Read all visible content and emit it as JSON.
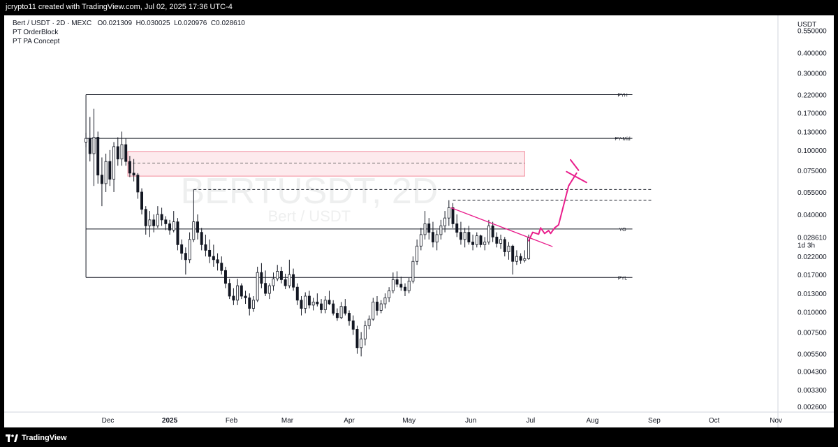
{
  "header": {
    "caption": "jcrypto11 created with TradingView.com, Jul 02, 2025 17:36 UTC-4"
  },
  "legend": {
    "symbol": "Bert / USDT · 2D · MEXC",
    "open": "O0.021309",
    "high": "H0.030025",
    "low": "L0.020976",
    "close": "C0.028610",
    "indicator_1": "PT OrderBlock",
    "indicator_2": "PT PA Concept"
  },
  "watermark": {
    "symbol": "BERTUSDT, 2D",
    "name": "Bert / USDT"
  },
  "price_scale": {
    "currency": "USDT",
    "last_price": "0.028610",
    "countdown": "1d 3h",
    "colors": {
      "last_price_badge": "#ffffff",
      "text": "#131722"
    }
  },
  "footer": {
    "brand": "TradingView"
  },
  "chart_data": {
    "type": "candlestick",
    "symbol": "BERTUSDT",
    "timeframe": "2D",
    "y_scale": "log",
    "ylim": [
      0.0024,
      0.68
    ],
    "yticks": [
      0.55,
      0.4,
      0.3,
      0.22,
      0.17,
      0.13,
      0.1,
      0.075,
      0.055,
      0.04,
      0.03,
      0.022,
      0.017,
      0.013,
      0.01,
      0.0075,
      0.0055,
      0.0043,
      0.0033,
      0.0026
    ],
    "ytick_labels": [
      "0.550000",
      "0.400000",
      "0.300000",
      "0.220000",
      "0.170000",
      "0.130000",
      "0.100000",
      "0.075000",
      "0.055000",
      "0.040000",
      "0.030000",
      "0.022000",
      "0.017000",
      "0.013000",
      "0.010000",
      "0.007500",
      "0.005500",
      "0.004300",
      "0.003300",
      "0.002600"
    ],
    "x_tick_labels": [
      {
        "label": "Dec",
        "date": "2024-12-01"
      },
      {
        "label": "2025",
        "date": "2025-01-01"
      },
      {
        "label": "Feb",
        "date": "2025-02-01"
      },
      {
        "label": "Mar",
        "date": "2025-03-01"
      },
      {
        "label": "Apr",
        "date": "2025-04-01"
      },
      {
        "label": "May",
        "date": "2025-05-01"
      },
      {
        "label": "Jun",
        "date": "2025-06-01"
      },
      {
        "label": "Jul",
        "date": "2025-07-01"
      },
      {
        "label": "Aug",
        "date": "2025-08-01"
      },
      {
        "label": "Sep",
        "date": "2025-09-01"
      },
      {
        "label": "Oct",
        "date": "2025-10-01"
      },
      {
        "label": "Nov",
        "date": "2025-11-01"
      }
    ],
    "x_range": [
      "2024-10-10",
      "2025-11-02"
    ],
    "levels": [
      {
        "label": "PYH",
        "value": 0.22,
        "from": "2024-11-20",
        "to": "2025-08-21"
      },
      {
        "label": "PY-Mid",
        "value": 0.118,
        "from": "2024-11-20",
        "to": "2025-08-21"
      },
      {
        "label": "YO",
        "value": 0.0325,
        "from": "2024-11-20",
        "to": "2025-08-21"
      },
      {
        "label": "PYL",
        "value": 0.0163,
        "from": "2024-11-20",
        "to": "2025-08-21"
      }
    ],
    "order_block": {
      "top": 0.098,
      "bottom": 0.069,
      "mid": 0.083,
      "from": "2024-12-11",
      "to": "2025-06-28",
      "color": "#f28b9c"
    },
    "dashed_levels": [
      {
        "value": 0.057,
        "from": "2025-01-13",
        "to": "2025-08-31"
      },
      {
        "value": 0.049,
        "from": "2025-05-23",
        "to": "2025-08-31"
      }
    ],
    "trendline": {
      "from": {
        "date": "2025-05-22",
        "value": 0.044
      },
      "to": {
        "date": "2025-07-12",
        "value": 0.0253
      },
      "color": "#e91e8c"
    },
    "projection": {
      "color": "#e91e8c",
      "points": [
        {
          "date": "2025-06-30",
          "value": 0.0275
        },
        {
          "date": "2025-07-02",
          "value": 0.031
        },
        {
          "date": "2025-07-05",
          "value": 0.0302
        },
        {
          "date": "2025-07-06",
          "value": 0.033
        },
        {
          "date": "2025-07-08",
          "value": 0.0305
        },
        {
          "date": "2025-07-10",
          "value": 0.0318
        },
        {
          "date": "2025-07-11",
          "value": 0.0305
        },
        {
          "date": "2025-07-13",
          "value": 0.033
        },
        {
          "date": "2025-07-15",
          "value": 0.0345
        },
        {
          "date": "2025-07-20",
          "value": 0.06
        },
        {
          "date": "2025-07-24",
          "value": 0.072
        }
      ]
    },
    "target_x": [
      {
        "from": {
          "date": "2025-07-19",
          "value": 0.0735
        },
        "to": {
          "date": "2025-07-29",
          "value": 0.063
        }
      },
      {
        "from": {
          "date": "2025-07-21",
          "value": 0.087
        },
        "to": {
          "date": "2025-07-25",
          "value": 0.075
        }
      }
    ],
    "candles": [
      {
        "d": "2024-11-20",
        "o": 0.112,
        "h": 0.128,
        "l": 0.104,
        "c": 0.118
      },
      {
        "d": "2024-11-22",
        "o": 0.118,
        "h": 0.16,
        "l": 0.085,
        "c": 0.095
      },
      {
        "d": "2024-11-24",
        "o": 0.095,
        "h": 0.18,
        "l": 0.06,
        "c": 0.12
      },
      {
        "d": "2024-11-26",
        "o": 0.12,
        "h": 0.13,
        "l": 0.062,
        "c": 0.07
      },
      {
        "d": "2024-11-28",
        "o": 0.07,
        "h": 0.09,
        "l": 0.045,
        "c": 0.062
      },
      {
        "d": "2024-11-30",
        "o": 0.062,
        "h": 0.095,
        "l": 0.055,
        "c": 0.085
      },
      {
        "d": "2024-12-02",
        "o": 0.085,
        "h": 0.1,
        "l": 0.06,
        "c": 0.066
      },
      {
        "d": "2024-12-04",
        "o": 0.066,
        "h": 0.112,
        "l": 0.055,
        "c": 0.105
      },
      {
        "d": "2024-12-06",
        "o": 0.105,
        "h": 0.12,
        "l": 0.08,
        "c": 0.088
      },
      {
        "d": "2024-12-08",
        "o": 0.088,
        "h": 0.13,
        "l": 0.08,
        "c": 0.108
      },
      {
        "d": "2024-12-10",
        "o": 0.108,
        "h": 0.118,
        "l": 0.08,
        "c": 0.085
      },
      {
        "d": "2024-12-12",
        "o": 0.085,
        "h": 0.092,
        "l": 0.068,
        "c": 0.072
      },
      {
        "d": "2024-12-14",
        "o": 0.072,
        "h": 0.088,
        "l": 0.064,
        "c": 0.07
      },
      {
        "d": "2024-12-16",
        "o": 0.07,
        "h": 0.072,
        "l": 0.05,
        "c": 0.055
      },
      {
        "d": "2024-12-18",
        "o": 0.055,
        "h": 0.058,
        "l": 0.04,
        "c": 0.043
      },
      {
        "d": "2024-12-20",
        "o": 0.043,
        "h": 0.045,
        "l": 0.03,
        "c": 0.034
      },
      {
        "d": "2024-12-22",
        "o": 0.034,
        "h": 0.042,
        "l": 0.029,
        "c": 0.037
      },
      {
        "d": "2024-12-24",
        "o": 0.037,
        "h": 0.04,
        "l": 0.031,
        "c": 0.034
      },
      {
        "d": "2024-12-26",
        "o": 0.034,
        "h": 0.045,
        "l": 0.033,
        "c": 0.04
      },
      {
        "d": "2024-12-28",
        "o": 0.04,
        "h": 0.044,
        "l": 0.034,
        "c": 0.037
      },
      {
        "d": "2024-12-30",
        "o": 0.037,
        "h": 0.039,
        "l": 0.032,
        "c": 0.035
      },
      {
        "d": "2025-01-01",
        "o": 0.035,
        "h": 0.037,
        "l": 0.03,
        "c": 0.032
      },
      {
        "d": "2025-01-03",
        "o": 0.032,
        "h": 0.042,
        "l": 0.031,
        "c": 0.036
      },
      {
        "d": "2025-01-05",
        "o": 0.036,
        "h": 0.038,
        "l": 0.024,
        "c": 0.026
      },
      {
        "d": "2025-01-07",
        "o": 0.026,
        "h": 0.028,
        "l": 0.021,
        "c": 0.023
      },
      {
        "d": "2025-01-09",
        "o": 0.023,
        "h": 0.025,
        "l": 0.017,
        "c": 0.021
      },
      {
        "d": "2025-01-11",
        "o": 0.021,
        "h": 0.031,
        "l": 0.02,
        "c": 0.028
      },
      {
        "d": "2025-01-13",
        "o": 0.028,
        "h": 0.057,
        "l": 0.027,
        "c": 0.036
      },
      {
        "d": "2025-01-15",
        "o": 0.036,
        "h": 0.04,
        "l": 0.028,
        "c": 0.031
      },
      {
        "d": "2025-01-17",
        "o": 0.031,
        "h": 0.033,
        "l": 0.024,
        "c": 0.026
      },
      {
        "d": "2025-01-19",
        "o": 0.026,
        "h": 0.03,
        "l": 0.022,
        "c": 0.024
      },
      {
        "d": "2025-01-21",
        "o": 0.024,
        "h": 0.028,
        "l": 0.02,
        "c": 0.022
      },
      {
        "d": "2025-01-23",
        "o": 0.022,
        "h": 0.026,
        "l": 0.019,
        "c": 0.021
      },
      {
        "d": "2025-01-25",
        "o": 0.021,
        "h": 0.023,
        "l": 0.018,
        "c": 0.02
      },
      {
        "d": "2025-01-27",
        "o": 0.02,
        "h": 0.022,
        "l": 0.017,
        "c": 0.018
      },
      {
        "d": "2025-01-29",
        "o": 0.018,
        "h": 0.019,
        "l": 0.014,
        "c": 0.015
      },
      {
        "d": "2025-01-31",
        "o": 0.015,
        "h": 0.016,
        "l": 0.012,
        "c": 0.0125
      },
      {
        "d": "2025-02-02",
        "o": 0.0125,
        "h": 0.014,
        "l": 0.011,
        "c": 0.0118
      },
      {
        "d": "2025-02-04",
        "o": 0.0118,
        "h": 0.016,
        "l": 0.011,
        "c": 0.0145
      },
      {
        "d": "2025-02-06",
        "o": 0.0145,
        "h": 0.015,
        "l": 0.012,
        "c": 0.0125
      },
      {
        "d": "2025-02-08",
        "o": 0.0125,
        "h": 0.0135,
        "l": 0.0112,
        "c": 0.0122
      },
      {
        "d": "2025-02-10",
        "o": 0.0122,
        "h": 0.013,
        "l": 0.0095,
        "c": 0.0105
      },
      {
        "d": "2025-02-12",
        "o": 0.0105,
        "h": 0.0125,
        "l": 0.01,
        "c": 0.0118
      },
      {
        "d": "2025-02-14",
        "o": 0.0118,
        "h": 0.019,
        "l": 0.0115,
        "c": 0.0175
      },
      {
        "d": "2025-02-16",
        "o": 0.0175,
        "h": 0.02,
        "l": 0.014,
        "c": 0.015
      },
      {
        "d": "2025-02-18",
        "o": 0.015,
        "h": 0.018,
        "l": 0.0125,
        "c": 0.013
      },
      {
        "d": "2025-02-20",
        "o": 0.013,
        "h": 0.015,
        "l": 0.012,
        "c": 0.0145
      },
      {
        "d": "2025-02-22",
        "o": 0.0145,
        "h": 0.0175,
        "l": 0.0135,
        "c": 0.016
      },
      {
        "d": "2025-02-24",
        "o": 0.016,
        "h": 0.0195,
        "l": 0.0155,
        "c": 0.0178
      },
      {
        "d": "2025-02-26",
        "o": 0.0178,
        "h": 0.019,
        "l": 0.015,
        "c": 0.0158
      },
      {
        "d": "2025-02-28",
        "o": 0.0158,
        "h": 0.0172,
        "l": 0.0138,
        "c": 0.0145
      },
      {
        "d": "2025-03-02",
        "o": 0.0145,
        "h": 0.021,
        "l": 0.014,
        "c": 0.017
      },
      {
        "d": "2025-03-04",
        "o": 0.017,
        "h": 0.0185,
        "l": 0.0135,
        "c": 0.0142
      },
      {
        "d": "2025-03-06",
        "o": 0.0142,
        "h": 0.015,
        "l": 0.011,
        "c": 0.0118
      },
      {
        "d": "2025-03-08",
        "o": 0.0118,
        "h": 0.0125,
        "l": 0.0095,
        "c": 0.0105
      },
      {
        "d": "2025-03-10",
        "o": 0.0105,
        "h": 0.0132,
        "l": 0.0098,
        "c": 0.0125
      },
      {
        "d": "2025-03-12",
        "o": 0.0125,
        "h": 0.0135,
        "l": 0.0105,
        "c": 0.011
      },
      {
        "d": "2025-03-14",
        "o": 0.011,
        "h": 0.0122,
        "l": 0.0102,
        "c": 0.0115
      },
      {
        "d": "2025-03-16",
        "o": 0.0115,
        "h": 0.013,
        "l": 0.0108,
        "c": 0.0112
      },
      {
        "d": "2025-03-18",
        "o": 0.0112,
        "h": 0.012,
        "l": 0.0098,
        "c": 0.0103
      },
      {
        "d": "2025-03-20",
        "o": 0.0103,
        "h": 0.0125,
        "l": 0.0098,
        "c": 0.0118
      },
      {
        "d": "2025-03-22",
        "o": 0.0118,
        "h": 0.0135,
        "l": 0.011,
        "c": 0.0112
      },
      {
        "d": "2025-03-24",
        "o": 0.0112,
        "h": 0.0118,
        "l": 0.0095,
        "c": 0.0098
      },
      {
        "d": "2025-03-26",
        "o": 0.0098,
        "h": 0.0105,
        "l": 0.0088,
        "c": 0.0092
      },
      {
        "d": "2025-03-28",
        "o": 0.0092,
        "h": 0.0115,
        "l": 0.009,
        "c": 0.0108
      },
      {
        "d": "2025-03-30",
        "o": 0.0108,
        "h": 0.012,
        "l": 0.0095,
        "c": 0.0098
      },
      {
        "d": "2025-04-01",
        "o": 0.0098,
        "h": 0.0102,
        "l": 0.0082,
        "c": 0.0088
      },
      {
        "d": "2025-04-03",
        "o": 0.0088,
        "h": 0.0095,
        "l": 0.0072,
        "c": 0.0078
      },
      {
        "d": "2025-04-05",
        "o": 0.0078,
        "h": 0.0082,
        "l": 0.0055,
        "c": 0.006
      },
      {
        "d": "2025-04-07",
        "o": 0.006,
        "h": 0.0075,
        "l": 0.0053,
        "c": 0.0068
      },
      {
        "d": "2025-04-09",
        "o": 0.0068,
        "h": 0.0088,
        "l": 0.0062,
        "c": 0.0082
      },
      {
        "d": "2025-04-11",
        "o": 0.0082,
        "h": 0.0095,
        "l": 0.0078,
        "c": 0.009
      },
      {
        "d": "2025-04-13",
        "o": 0.009,
        "h": 0.0122,
        "l": 0.0088,
        "c": 0.0115
      },
      {
        "d": "2025-04-15",
        "o": 0.0115,
        "h": 0.0125,
        "l": 0.0095,
        "c": 0.0102
      },
      {
        "d": "2025-04-17",
        "o": 0.0102,
        "h": 0.0118,
        "l": 0.0098,
        "c": 0.0112
      },
      {
        "d": "2025-04-19",
        "o": 0.0112,
        "h": 0.013,
        "l": 0.0105,
        "c": 0.0122
      },
      {
        "d": "2025-04-21",
        "o": 0.0122,
        "h": 0.0142,
        "l": 0.0115,
        "c": 0.0135
      },
      {
        "d": "2025-04-23",
        "o": 0.0135,
        "h": 0.0175,
        "l": 0.013,
        "c": 0.0158
      },
      {
        "d": "2025-04-25",
        "o": 0.0158,
        "h": 0.0178,
        "l": 0.0142,
        "c": 0.0148
      },
      {
        "d": "2025-04-27",
        "o": 0.0148,
        "h": 0.0165,
        "l": 0.0135,
        "c": 0.0142
      },
      {
        "d": "2025-04-29",
        "o": 0.0142,
        "h": 0.015,
        "l": 0.0125,
        "c": 0.0135
      },
      {
        "d": "2025-05-01",
        "o": 0.0135,
        "h": 0.0162,
        "l": 0.013,
        "c": 0.0155
      },
      {
        "d": "2025-05-03",
        "o": 0.0155,
        "h": 0.022,
        "l": 0.015,
        "c": 0.0205
      },
      {
        "d": "2025-05-05",
        "o": 0.0205,
        "h": 0.028,
        "l": 0.0195,
        "c": 0.0255
      },
      {
        "d": "2025-05-07",
        "o": 0.0255,
        "h": 0.033,
        "l": 0.024,
        "c": 0.03
      },
      {
        "d": "2025-05-09",
        "o": 0.03,
        "h": 0.042,
        "l": 0.028,
        "c": 0.035
      },
      {
        "d": "2025-05-11",
        "o": 0.035,
        "h": 0.038,
        "l": 0.028,
        "c": 0.031
      },
      {
        "d": "2025-05-13",
        "o": 0.031,
        "h": 0.036,
        "l": 0.025,
        "c": 0.027
      },
      {
        "d": "2025-05-15",
        "o": 0.027,
        "h": 0.032,
        "l": 0.024,
        "c": 0.03
      },
      {
        "d": "2025-05-17",
        "o": 0.03,
        "h": 0.037,
        "l": 0.028,
        "c": 0.034
      },
      {
        "d": "2025-05-19",
        "o": 0.034,
        "h": 0.042,
        "l": 0.031,
        "c": 0.038
      },
      {
        "d": "2025-05-21",
        "o": 0.038,
        "h": 0.049,
        "l": 0.034,
        "c": 0.044
      },
      {
        "d": "2025-05-23",
        "o": 0.044,
        "h": 0.047,
        "l": 0.033,
        "c": 0.035
      },
      {
        "d": "2025-05-25",
        "o": 0.035,
        "h": 0.04,
        "l": 0.029,
        "c": 0.031
      },
      {
        "d": "2025-05-27",
        "o": 0.031,
        "h": 0.036,
        "l": 0.026,
        "c": 0.028
      },
      {
        "d": "2025-05-29",
        "o": 0.028,
        "h": 0.033,
        "l": 0.025,
        "c": 0.031
      },
      {
        "d": "2025-05-31",
        "o": 0.031,
        "h": 0.034,
        "l": 0.026,
        "c": 0.027
      },
      {
        "d": "2025-06-02",
        "o": 0.027,
        "h": 0.03,
        "l": 0.024,
        "c": 0.026
      },
      {
        "d": "2025-06-04",
        "o": 0.026,
        "h": 0.031,
        "l": 0.025,
        "c": 0.0295
      },
      {
        "d": "2025-06-06",
        "o": 0.0295,
        "h": 0.03,
        "l": 0.025,
        "c": 0.026
      },
      {
        "d": "2025-06-08",
        "o": 0.026,
        "h": 0.029,
        "l": 0.024,
        "c": 0.027
      },
      {
        "d": "2025-06-10",
        "o": 0.027,
        "h": 0.037,
        "l": 0.026,
        "c": 0.034
      },
      {
        "d": "2025-06-12",
        "o": 0.034,
        "h": 0.036,
        "l": 0.027,
        "c": 0.029
      },
      {
        "d": "2025-06-14",
        "o": 0.029,
        "h": 0.031,
        "l": 0.025,
        "c": 0.0265
      },
      {
        "d": "2025-06-16",
        "o": 0.0265,
        "h": 0.03,
        "l": 0.0245,
        "c": 0.028
      },
      {
        "d": "2025-06-18",
        "o": 0.028,
        "h": 0.029,
        "l": 0.022,
        "c": 0.0235
      },
      {
        "d": "2025-06-20",
        "o": 0.0235,
        "h": 0.027,
        "l": 0.021,
        "c": 0.0255
      },
      {
        "d": "2025-06-22",
        "o": 0.0255,
        "h": 0.026,
        "l": 0.017,
        "c": 0.0205
      },
      {
        "d": "2025-06-24",
        "o": 0.0205,
        "h": 0.024,
        "l": 0.0195,
        "c": 0.022
      },
      {
        "d": "2025-06-26",
        "o": 0.022,
        "h": 0.023,
        "l": 0.0198,
        "c": 0.0208
      },
      {
        "d": "2025-06-28",
        "o": 0.0208,
        "h": 0.024,
        "l": 0.0202,
        "c": 0.0213
      },
      {
        "d": "2025-06-30",
        "o": 0.021309,
        "h": 0.030025,
        "l": 0.020976,
        "c": 0.02861
      }
    ]
  }
}
